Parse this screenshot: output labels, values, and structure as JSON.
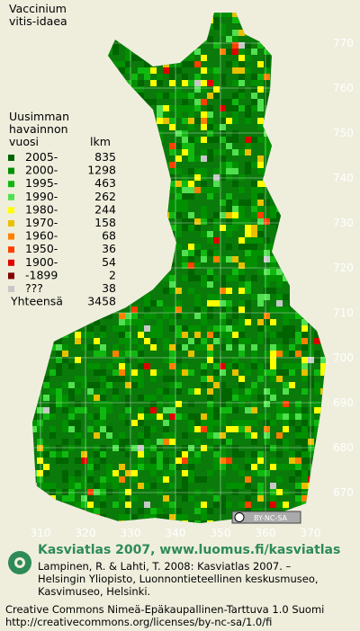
{
  "species": [
    "Vaccinium",
    "vitis-idaea"
  ],
  "legend": {
    "heading": [
      "Uusimman",
      "havainnon",
      "vuosi"
    ],
    "count_heading": "lkm",
    "entries": [
      {
        "label": "2005-",
        "count": 835,
        "color": "#006400"
      },
      {
        "label": "2000-",
        "count": 1298,
        "color": "#009000"
      },
      {
        "label": "1995-",
        "count": 463,
        "color": "#10b810"
      },
      {
        "label": "1990-",
        "count": 262,
        "color": "#50e050"
      },
      {
        "label": "1980-",
        "count": 244,
        "color": "#ffff00"
      },
      {
        "label": "1970-",
        "count": 158,
        "color": "#e8c000"
      },
      {
        "label": "1960-",
        "count": 68,
        "color": "#ff8000"
      },
      {
        "label": "1950-",
        "count": 36,
        "color": "#ff4000"
      },
      {
        "label": "1900-",
        "count": 54,
        "color": "#e00000"
      },
      {
        "label": "-1899",
        "count": 2,
        "color": "#800000"
      },
      {
        "label": "???",
        "count": 38,
        "color": "#c8c8c8"
      }
    ],
    "total_label": "Yhteensä",
    "total": 3458
  },
  "map": {
    "northing_labels": [
      770,
      760,
      750,
      740,
      730,
      720,
      710,
      700,
      690,
      680,
      670
    ],
    "easting_labels": [
      310,
      320,
      330,
      340,
      350,
      360,
      370
    ]
  },
  "license_badge": "BY-NC-SA",
  "footer": {
    "title": "Kasviatlas 2007, www.luomus.fi/kasviatlas",
    "citation": [
      "Lampinen, R. & Lahti, T. 2008: Kasviatlas 2007. –",
      "Helsingin Yliopisto, Luonnontieteellinen keskusmuseo,",
      "Kasvimuseo, Helsinki."
    ],
    "license": [
      "Creative Commons Nimeä-Epäkaupallinen-Tarttuva 1.0 Suomi",
      "http://creativecommons.org/licenses/by-nc-sa/1.0/fi"
    ]
  }
}
